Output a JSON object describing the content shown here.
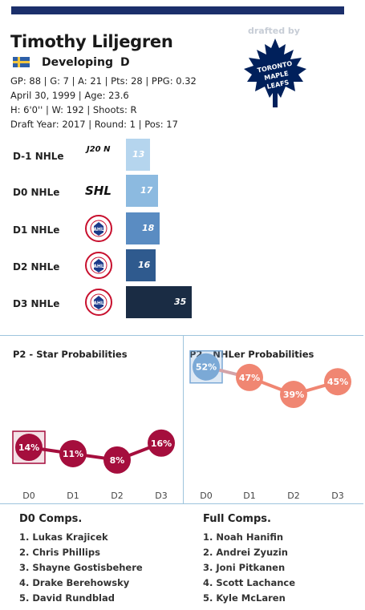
{
  "header": {
    "name": "Timothy Liljegren",
    "drafted_by": "drafted by",
    "team_logo_text": [
      "TORONTO",
      "MAPLE",
      "LEAFS"
    ],
    "status": "Developing",
    "position": "D",
    "stats_line": "GP: 88 | G: 7 | A: 21 | Pts: 28 | PPG: 0.32",
    "birth_line": "April 30, 1999 | Age: 23.6",
    "physical_line": "H: 6'0'' | W: 192 | Shoots: R",
    "draft_line": "Draft Year: 2017 | Round: 1 | Pos: 17"
  },
  "colors": {
    "accent": "#1b2f6b",
    "leafs_blue": "#00205b",
    "star": "#a50e3d",
    "nhler_d0": "#7ba9d6",
    "nhler_other": "#f08672"
  },
  "nhle_rows": [
    {
      "label": "D-1 NHLe",
      "league": "J20 N",
      "league_type": "text",
      "value": 13,
      "color": "#b5d5ee"
    },
    {
      "label": "D0 NHLe",
      "league": "SHL",
      "league_type": "text",
      "value": 17,
      "color": "#8cbae0"
    },
    {
      "label": "D1 NHLe",
      "league": "AHL",
      "league_type": "ahl",
      "value": 18,
      "color": "#5a8cc2"
    },
    {
      "label": "D2 NHLe",
      "league": "AHL",
      "league_type": "ahl",
      "value": 16,
      "color": "#2f5a8e"
    },
    {
      "label": "D3 NHLe",
      "league": "AHL",
      "league_type": "ahl",
      "value": 35,
      "color": "#1a2c44"
    }
  ],
  "ahl_logo_text": "AMERICAN HOCKEY LEAGUE",
  "ahl_logo_mark": "AHL",
  "chart_data": [
    {
      "type": "line",
      "title": "P2 - Star Probabilities",
      "categories": [
        "D0",
        "D1",
        "D2",
        "D3"
      ],
      "values": [
        14,
        11,
        8,
        16
      ],
      "labels": [
        "14%",
        "11%",
        "8%",
        "16%"
      ],
      "ylim": [
        0,
        100
      ]
    },
    {
      "type": "line",
      "title": "P2 - NHLer Probabilities",
      "categories": [
        "D0",
        "D1",
        "D2",
        "D3"
      ],
      "values": [
        52,
        47,
        39,
        45
      ],
      "labels": [
        "52%",
        "47%",
        "39%",
        "45%"
      ],
      "ylim": [
        0,
        100
      ]
    }
  ],
  "comps": {
    "d0_title": "D0 Comps.",
    "d0": [
      "1. Lukas Krajicek",
      "2. Chris Phillips",
      "3. Shayne Gostisbehere",
      "4. Drake Berehowsky",
      "5. David Rundblad"
    ],
    "full_title": "Full Comps.",
    "full": [
      "1. Noah Hanifin",
      "2. Andrei Zyuzin",
      "3. Joni Pitkanen",
      "4. Scott Lachance",
      "5. Kyle McLaren"
    ]
  }
}
